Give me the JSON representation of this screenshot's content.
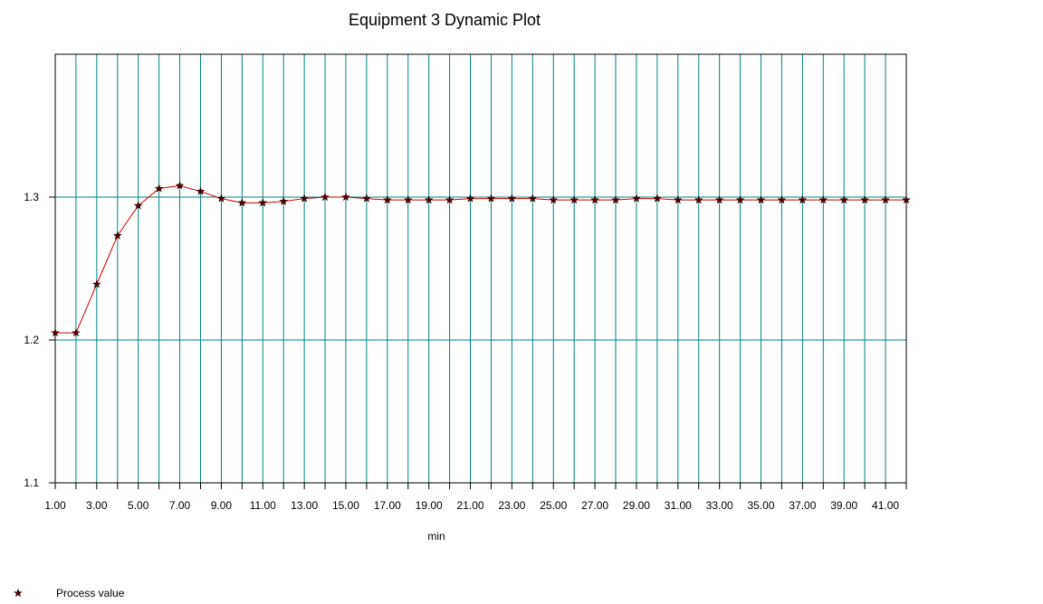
{
  "chart_data": {
    "type": "line",
    "title": "Equipment 3 Dynamic Plot",
    "xlabel": "min",
    "ylabel": "",
    "x": [
      1,
      2,
      3,
      4,
      5,
      6,
      7,
      8,
      9,
      10,
      11,
      12,
      13,
      14,
      15,
      16,
      17,
      18,
      19,
      20,
      21,
      22,
      23,
      24,
      25,
      26,
      27,
      28,
      29,
      30,
      31,
      32,
      33,
      34,
      35,
      36,
      37,
      38,
      39,
      40,
      41,
      42
    ],
    "xlim": [
      1,
      42
    ],
    "ylim": [
      1.1,
      1.4
    ],
    "x_tick_labels": [
      "1.00",
      "3.00",
      "5.00",
      "7.00",
      "9.00",
      "11.00",
      "13.00",
      "15.00",
      "17.00",
      "19.00",
      "21.00",
      "23.00",
      "25.00",
      "27.00",
      "29.00",
      "31.00",
      "33.00",
      "35.00",
      "37.00",
      "39.00",
      "41.00"
    ],
    "y_ticks": [
      1.1,
      1.2,
      1.3
    ],
    "y_tick_labels": [
      "1.1",
      "1.2",
      "1.3"
    ],
    "grid": true,
    "legend_position": "bottom-left",
    "series": [
      {
        "name": "Process value",
        "marker": "star",
        "color": "#cc0000",
        "marker_color": "#550000",
        "values": [
          1.205,
          1.205,
          1.239,
          1.273,
          1.294,
          1.306,
          1.308,
          1.304,
          1.299,
          1.296,
          1.296,
          1.297,
          1.299,
          1.3,
          1.3,
          1.299,
          1.298,
          1.298,
          1.298,
          1.298,
          1.299,
          1.299,
          1.299,
          1.299,
          1.298,
          1.298,
          1.298,
          1.298,
          1.299,
          1.299,
          1.298,
          1.298,
          1.298,
          1.298,
          1.298,
          1.298,
          1.298,
          1.298,
          1.298,
          1.298,
          1.298,
          1.298
        ]
      }
    ],
    "grid_color": "#008080"
  }
}
